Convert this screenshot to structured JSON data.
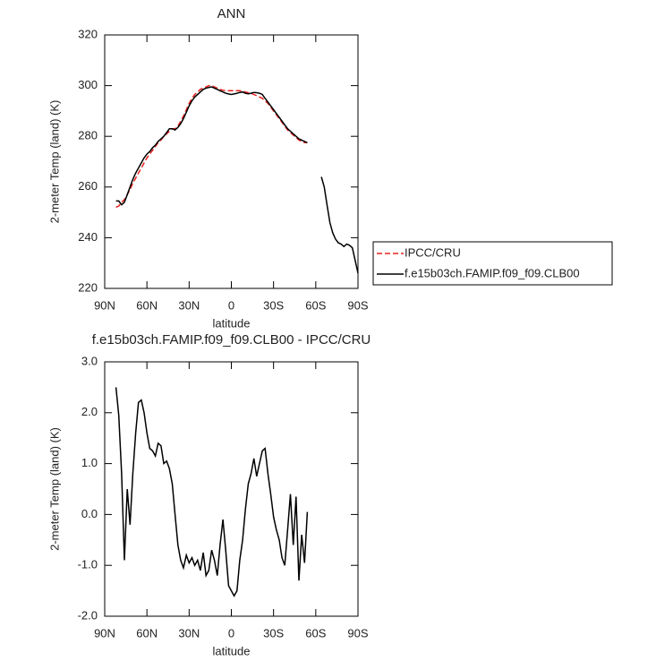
{
  "chart_data": [
    {
      "type": "line",
      "title": "ANN",
      "xlabel": "latitude",
      "ylabel": "2-meter Temp (land) (K)",
      "xlim": [
        90,
        -90
      ],
      "xticks": [
        {
          "value": 90,
          "label": "90N"
        },
        {
          "value": 60,
          "label": "60N"
        },
        {
          "value": 30,
          "label": "30N"
        },
        0,
        {
          "value": -30,
          "label": "30S"
        },
        {
          "value": -60,
          "label": "60S"
        },
        {
          "value": -90,
          "label": "90S"
        }
      ],
      "ylim": [
        220,
        320
      ],
      "yticks": [
        220,
        240,
        260,
        280,
        300,
        320
      ],
      "legend": "outside-right",
      "x": [
        82,
        80,
        78,
        76,
        74,
        72,
        70,
        68,
        66,
        64,
        62,
        60,
        58,
        56,
        54,
        52,
        50,
        48,
        46,
        44,
        42,
        40,
        38,
        36,
        34,
        32,
        30,
        28,
        26,
        24,
        22,
        20,
        18,
        16,
        14,
        12,
        10,
        8,
        6,
        4,
        2,
        0,
        -2,
        -4,
        -6,
        -8,
        -10,
        -12,
        -14,
        -16,
        -18,
        -20,
        -22,
        -24,
        -26,
        -28,
        -30,
        -32,
        -34,
        -36,
        -38,
        -40,
        -42,
        -44,
        -46,
        -48,
        -50,
        -52,
        -54,
        -56,
        -58,
        -60,
        -62,
        -64,
        -66,
        -68,
        -70,
        -72,
        -74,
        -76,
        -78,
        -80,
        -82,
        -84,
        -86,
        -88,
        -90
      ],
      "series": [
        {
          "name": "IPCC/CRU",
          "color": "#e8201e",
          "dash": true,
          "values": [
            252,
            252.5,
            254,
            255,
            257,
            259,
            261.5,
            263.5,
            265.5,
            267.5,
            269.5,
            271.5,
            273,
            274.5,
            276,
            277.5,
            278.5,
            280,
            281,
            282,
            283,
            283,
            284,
            286,
            288,
            290.5,
            293,
            295,
            296.5,
            297.5,
            298.5,
            299,
            299.5,
            300,
            300,
            299.5,
            299,
            298.5,
            298.2,
            298,
            298,
            298,
            298,
            298,
            298,
            297.8,
            297.5,
            297.2,
            297,
            296.5,
            296,
            295.5,
            295,
            294,
            293,
            291.5,
            290,
            288.5,
            287,
            285.5,
            284,
            282.5,
            281.5,
            280.5,
            279.5,
            278.5,
            278,
            277.5,
            277.5,
            null,
            null,
            null,
            null,
            null,
            null,
            null,
            null,
            null,
            null,
            null,
            null,
            null,
            null,
            null,
            null,
            null,
            null
          ]
        },
        {
          "name": "f.e15b03ch.FAMIP.f09_f09.CLB00",
          "color": "#000000",
          "dash": false,
          "values": [
            254.5,
            254.5,
            253,
            254,
            257,
            260,
            263,
            265.5,
            267.5,
            269.5,
            271.5,
            273,
            274,
            275.5,
            276.5,
            278,
            279,
            280,
            281.5,
            283,
            283,
            282.5,
            283.5,
            285,
            287,
            289.5,
            292,
            294,
            295.5,
            296.5,
            297.5,
            298.5,
            299,
            299.3,
            299.5,
            299,
            298.5,
            298,
            297.5,
            297,
            296.7,
            296.5,
            296.7,
            297,
            297.3,
            297.5,
            297,
            296.8,
            297,
            297.3,
            297.2,
            297,
            296.5,
            295,
            293.5,
            292,
            290.5,
            289,
            287.5,
            286,
            284.5,
            283,
            282,
            281,
            280,
            279,
            278.5,
            278,
            277.5,
            null,
            null,
            null,
            null,
            264,
            260,
            253,
            246,
            242,
            239.5,
            238,
            237.5,
            236.5,
            237.5,
            237,
            236,
            231,
            226
          ]
        }
      ]
    },
    {
      "type": "line",
      "title": "f.e15b03ch.FAMIP.f09_f09.CLB00 - IPCC/CRU",
      "xlabel": "latitude",
      "ylabel": "2-meter Temp (land) (K)",
      "xlim": [
        90,
        -90
      ],
      "xticks": [
        {
          "value": 90,
          "label": "90N"
        },
        {
          "value": 60,
          "label": "60N"
        },
        {
          "value": 30,
          "label": "30N"
        },
        0,
        {
          "value": -30,
          "label": "30S"
        },
        {
          "value": -60,
          "label": "60S"
        },
        {
          "value": -90,
          "label": "90S"
        }
      ],
      "ylim": [
        -2,
        3
      ],
      "yticks": [
        {
          "value": -2,
          "label": "-2.0"
        },
        {
          "value": -1,
          "label": "-1.0"
        },
        {
          "value": 0,
          "label": "0.0"
        },
        {
          "value": 1,
          "label": "1.0"
        },
        {
          "value": 2,
          "label": "2.0"
        },
        {
          "value": 3,
          "label": "3.0"
        }
      ],
      "x": [
        82,
        80,
        78,
        76,
        74,
        72,
        70,
        68,
        66,
        64,
        62,
        60,
        58,
        56,
        54,
        52,
        50,
        48,
        46,
        44,
        42,
        40,
        38,
        36,
        34,
        32,
        30,
        28,
        26,
        24,
        22,
        20,
        18,
        16,
        14,
        12,
        10,
        8,
        6,
        4,
        2,
        0,
        -2,
        -4,
        -6,
        -8,
        -10,
        -12,
        -14,
        -16,
        -18,
        -20,
        -22,
        -24,
        -26,
        -28,
        -30,
        -32,
        -34,
        -36,
        -38,
        -40,
        -42,
        -44,
        -46,
        -48,
        -50,
        -52,
        -54
      ],
      "color": "#000000",
      "values": [
        2.5,
        1.95,
        0.8,
        -0.9,
        0.5,
        -0.2,
        0.8,
        1.6,
        2.2,
        2.25,
        2.0,
        1.6,
        1.3,
        1.25,
        1.15,
        1.4,
        1.35,
        1.0,
        1.05,
        0.9,
        0.6,
        0.0,
        -0.6,
        -0.9,
        -1.05,
        -0.8,
        -0.95,
        -0.85,
        -1.0,
        -0.9,
        -1.1,
        -0.75,
        -1.2,
        -1.1,
        -0.7,
        -0.9,
        -1.2,
        -0.6,
        -0.1,
        -0.7,
        -1.4,
        -1.5,
        -1.6,
        -1.5,
        -0.9,
        -0.5,
        0.1,
        0.6,
        0.8,
        1.1,
        0.75,
        1.0,
        1.25,
        1.3,
        0.8,
        0.4,
        -0.05,
        -0.3,
        -0.5,
        -0.85,
        -1.0,
        -0.3,
        0.4,
        -0.6,
        0.35,
        -1.3,
        -0.4,
        -0.95,
        0.05
      ]
    }
  ]
}
